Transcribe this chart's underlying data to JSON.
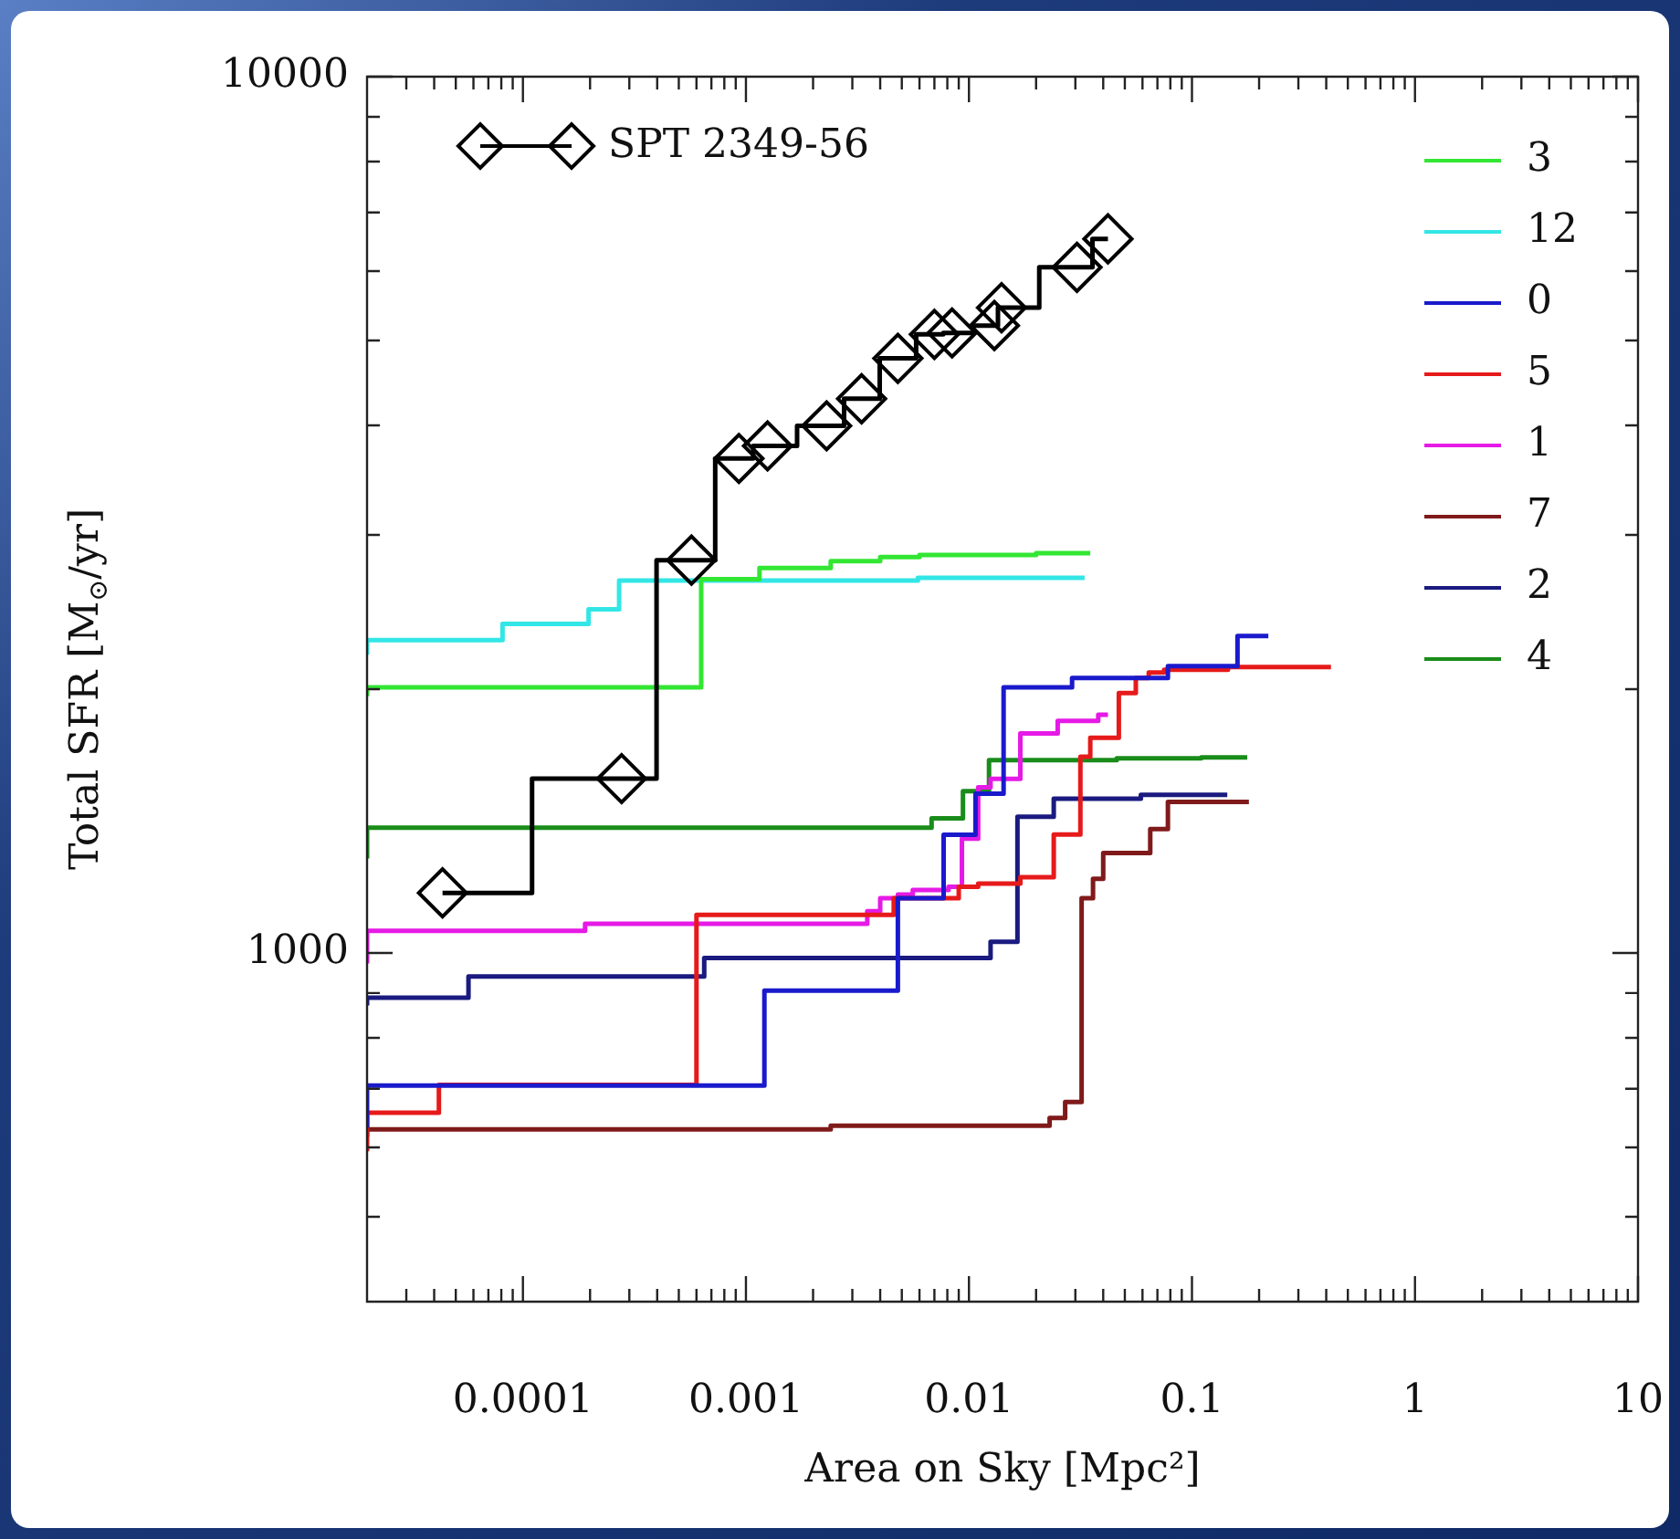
{
  "chart_data": {
    "type": "step",
    "xlabel": "Area on Sky [Mpc²]",
    "ylabel": "Total SFR [M$_{⊙}$/yr]",
    "log": "xy",
    "grid": false,
    "legend": "top right",
    "xlim": [
      2e-05,
      10
    ],
    "ylim": [
      400,
      10000
    ],
    "xticks": [
      {
        "value": 3e-05,
        "label": null
      },
      {
        "value": 4e-05,
        "label": null
      },
      {
        "value": 5e-05,
        "label": null
      },
      {
        "value": 6e-05,
        "label": null
      },
      {
        "value": 7e-05,
        "label": null
      },
      {
        "value": 8e-05,
        "label": null
      },
      {
        "value": 9e-05,
        "label": null
      },
      0.0001,
      {
        "value": 0.0002,
        "label": null
      },
      {
        "value": 0.0003,
        "label": null
      },
      {
        "value": 0.0004,
        "label": null
      },
      {
        "value": 0.0005,
        "label": null
      },
      {
        "value": 0.0006,
        "label": null
      },
      {
        "value": 0.0007,
        "label": null
      },
      {
        "value": 0.0008,
        "label": null
      },
      {
        "value": 0.0009,
        "label": null
      },
      0.001,
      {
        "value": 0.002,
        "label": null
      },
      {
        "value": 0.003,
        "label": null
      },
      {
        "value": 0.004,
        "label": null
      },
      {
        "value": 0.005,
        "label": null
      },
      {
        "value": 0.006,
        "label": null
      },
      {
        "value": 0.007,
        "label": null
      },
      {
        "value": 0.008,
        "label": null
      },
      {
        "value": 0.009,
        "label": null
      },
      0.01,
      {
        "value": 0.02,
        "label": null
      },
      {
        "value": 0.03,
        "label": null
      },
      {
        "value": 0.04,
        "label": null
      },
      {
        "value": 0.05,
        "label": null
      },
      {
        "value": 0.06,
        "label": null
      },
      {
        "value": 0.07,
        "label": null
      },
      {
        "value": 0.08,
        "label": null
      },
      {
        "value": 0.09,
        "label": null
      },
      0.1,
      {
        "value": 0.2,
        "label": null
      },
      {
        "value": 0.3,
        "label": null
      },
      {
        "value": 0.4,
        "label": null
      },
      {
        "value": 0.5,
        "label": null
      },
      {
        "value": 0.6,
        "label": null
      },
      {
        "value": 0.7,
        "label": null
      },
      {
        "value": 0.8,
        "label": null
      },
      {
        "value": 0.9,
        "label": null
      },
      1,
      {
        "value": 2,
        "label": null
      },
      {
        "value": 3,
        "label": null
      },
      {
        "value": 4,
        "label": null
      },
      {
        "value": 5,
        "label": null
      },
      {
        "value": 6,
        "label": null
      },
      {
        "value": 7,
        "label": null
      },
      {
        "value": 8,
        "label": null
      },
      {
        "value": 9,
        "label": null
      },
      10
    ],
    "yticks": [
      {
        "value": 500,
        "label": null
      },
      {
        "value": 600,
        "label": null
      },
      {
        "value": 700,
        "label": null
      },
      {
        "value": 800,
        "label": null
      },
      {
        "value": 900,
        "label": null
      },
      1000,
      {
        "value": 2000,
        "label": null
      },
      {
        "value": 3000,
        "label": null
      },
      {
        "value": 4000,
        "label": null
      },
      {
        "value": 5000,
        "label": null
      },
      {
        "value": 6000,
        "label": null
      },
      {
        "value": 7000,
        "label": null
      },
      {
        "value": 8000,
        "label": null
      },
      {
        "value": 9000,
        "label": null
      },
      10000
    ],
    "series": [
      {
        "name": "SPT 2349-56",
        "color": "#000000",
        "marker": "diamond",
        "x": [
          4.36e-05,
          0.000277,
          0.00057,
          0.00093,
          0.00125,
          0.0023,
          0.0033,
          0.0048,
          0.007,
          0.0084,
          0.013,
          0.014,
          0.0305,
          0.042
        ],
        "values": [
          1171,
          1581,
          2807,
          3667,
          3790,
          3995,
          4290,
          4770,
          5080,
          5100,
          5200,
          5450,
          6060,
          6530
        ]
      },
      {
        "name": "3",
        "color": "#33e633",
        "x": [
          2e-05,
          0.00063,
          0.00115,
          0.0024,
          0.004,
          0.006,
          0.02,
          0.035
        ],
        "values": [
          1963,
          2010,
          2670,
          2750,
          2800,
          2830,
          2845,
          2860
        ]
      },
      {
        "name": "12",
        "color": "#33e6e6",
        "x": [
          2e-05,
          8.1e-05,
          0.000197,
          0.00027,
          0.0059,
          0.033
        ],
        "values": [
          2190,
          2275,
          2374,
          2467,
          2660,
          2680
        ]
      },
      {
        "name": "0",
        "color": "#1a1acc",
        "x": [
          2e-05,
          0.00121,
          0.0048,
          0.0077,
          0.0107,
          0.0143,
          0.029,
          0.078,
          0.16,
          0.21,
          0.22
        ],
        "values": [
          632,
          706,
          906,
          1155,
          1364,
          1520,
          2010,
          2060,
          2125,
          2300,
          2300
        ]
      },
      {
        "name": "5",
        "color": "#e61a1a",
        "x": [
          2e-05,
          4.2e-05,
          0.0006,
          0.0046,
          0.009,
          0.011,
          0.017,
          0.024,
          0.0316,
          0.035,
          0.047,
          0.056,
          0.064,
          0.075,
          0.145,
          0.24,
          0.42
        ],
        "values": [
          594,
          657,
          707,
          1105,
          1155,
          1190,
          1200,
          1220,
          1365,
          1675,
          1760,
          1980,
          2060,
          2090,
          2105,
          2120,
          2120
        ]
      },
      {
        "name": "1",
        "color": "#e61ae6",
        "x": [
          2e-05,
          0.00019,
          0.0035,
          0.004,
          0.0048,
          0.0056,
          0.0081,
          0.0093,
          0.011,
          0.0125,
          0.017,
          0.025,
          0.038,
          0.042
        ],
        "values": [
          973,
          1060,
          1080,
          1116,
          1155,
          1166,
          1180,
          1190,
          1350,
          1545,
          1580,
          1780,
          1840,
          1870
        ]
      },
      {
        "name": "7",
        "color": "#801a1a",
        "x": [
          2e-05,
          0.0024,
          0.023,
          0.027,
          0.032,
          0.036,
          0.04,
          0.065,
          0.078,
          0.16,
          0.18
        ],
        "values": [
          617,
          629,
          635,
          648,
          676,
          1155,
          1215,
          1300,
          1385,
          1487,
          1487
        ]
      },
      {
        "name": "2",
        "color": "#1a1a80",
        "x": [
          2e-05,
          5.7e-05,
          0.00065,
          0.0125,
          0.0165,
          0.024,
          0.059,
          0.081,
          0.144
        ],
        "values": [
          871,
          889,
          940,
          987,
          1030,
          1430,
          1500,
          1515,
          1515
        ]
      },
      {
        "name": "4",
        "color": "#1a8c1a",
        "x": [
          2e-05,
          0.0068,
          0.0094,
          0.0123,
          0.046,
          0.11,
          0.177
        ],
        "values": [
          1282,
          1390,
          1424,
          1530,
          1660,
          1668,
          1672
        ]
      }
    ]
  }
}
